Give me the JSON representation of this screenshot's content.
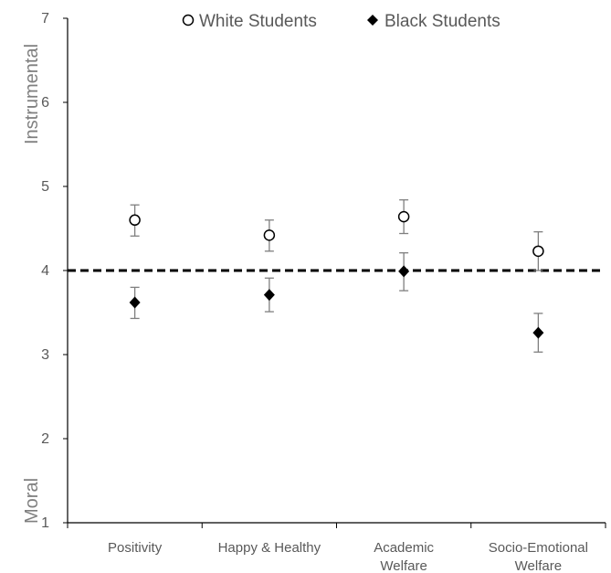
{
  "chart_data": {
    "type": "scatter",
    "title": "",
    "xlabel": "",
    "ylabel": "",
    "y_top_label": "Instrumental",
    "y_bottom_label": "Moral",
    "ylim": [
      1,
      7
    ],
    "yticks": [
      "1",
      "2",
      "3",
      "4",
      "5",
      "6",
      "7"
    ],
    "categories": [
      [
        "Positivity"
      ],
      [
        "Happy & Healthy"
      ],
      [
        "Academic",
        "Welfare"
      ],
      [
        "Socio-Emotional",
        "Welfare"
      ]
    ],
    "reference_line": 4,
    "legend_position": "top",
    "series": [
      {
        "name": "White Students",
        "marker": "open-circle",
        "color": "#000000",
        "values": [
          4.6,
          4.42,
          4.64,
          4.23
        ],
        "error_low": [
          4.41,
          4.23,
          4.44,
          4.0
        ],
        "error_high": [
          4.78,
          4.6,
          4.84,
          4.46
        ]
      },
      {
        "name": "Black Students",
        "marker": "filled-diamond",
        "color": "#000000",
        "values": [
          3.62,
          3.71,
          3.99,
          3.26
        ],
        "error_low": [
          3.43,
          3.51,
          3.76,
          3.03
        ],
        "error_high": [
          3.8,
          3.91,
          4.21,
          3.49
        ]
      }
    ]
  }
}
